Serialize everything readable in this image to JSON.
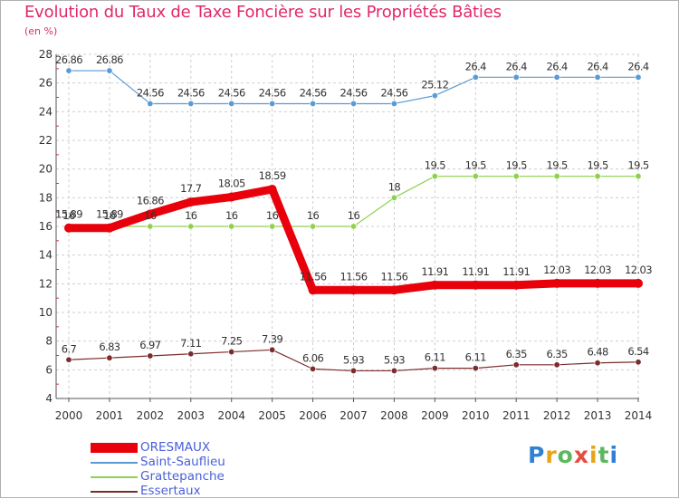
{
  "title": "Evolution du Taux de Taxe Foncière sur les Propriétés Bâties",
  "unit_label": "(en %)",
  "chart_data": {
    "type": "line",
    "title": "Evolution du Taux de Taxe Foncière sur les Propriétés Bâties",
    "ylabel": "(en %)",
    "xlabel": "",
    "ylim": [
      4,
      28
    ],
    "yticks": [
      4,
      6,
      8,
      10,
      12,
      14,
      16,
      18,
      20,
      22,
      24,
      26,
      28
    ],
    "x": [
      "2000",
      "2001",
      "2002",
      "2003",
      "2004",
      "2005",
      "2006",
      "2007",
      "2008",
      "2009",
      "2010",
      "2011",
      "2012",
      "2013",
      "2014"
    ],
    "series": [
      {
        "name": "Saint-Sauflieu",
        "color": "#5b9bd5",
        "values": [
          26.86,
          26.86,
          24.56,
          24.56,
          24.56,
          24.56,
          24.56,
          24.56,
          24.56,
          25.12,
          26.4,
          26.4,
          26.4,
          26.4,
          26.4
        ],
        "labels": [
          "26.86",
          "26.86",
          "24.56",
          "24.56",
          "24.56",
          "24.56",
          "24.56",
          "24.56",
          "24.56",
          "25.12",
          "26.4",
          "26.4",
          "26.4",
          "26.4",
          "26.4"
        ]
      },
      {
        "name": "Grattepanche",
        "color": "#8fd14f",
        "values": [
          16,
          16,
          16,
          16,
          16,
          16,
          16,
          16,
          18,
          19.5,
          19.5,
          19.5,
          19.5,
          19.5,
          19.5
        ],
        "labels": [
          "16",
          "16",
          "16",
          "16",
          "16",
          "16",
          "16",
          "16",
          "18",
          "19.5",
          "19.5",
          "19.5",
          "19.5",
          "19.5",
          "19.5"
        ]
      },
      {
        "name": "Essertaux",
        "color": "#7b2c2c",
        "values": [
          6.7,
          6.83,
          6.97,
          7.11,
          7.25,
          7.39,
          6.06,
          5.93,
          5.93,
          6.11,
          6.11,
          6.35,
          6.35,
          6.48,
          6.54
        ],
        "labels": [
          "6.7",
          "6.83",
          "6.97",
          "7.11",
          "7.25",
          "7.39",
          "6.06",
          "5.93",
          "5.93",
          "6.11",
          "6.11",
          "6.35",
          "6.35",
          "6.48",
          "6.54"
        ]
      },
      {
        "name": "ORESMAUX",
        "color": "#e8000b",
        "values": [
          15.89,
          15.89,
          16.86,
          17.7,
          18.05,
          18.59,
          11.56,
          11.56,
          11.56,
          11.91,
          11.91,
          11.91,
          12.03,
          12.03,
          12.03
        ],
        "labels": [
          "15.89",
          "15.89",
          "16.86",
          "17.7",
          "18.05",
          "18.59",
          "11.56",
          "11.56",
          "11.56",
          "11.91",
          "11.91",
          "11.91",
          "12.03",
          "12.03",
          "12.03"
        ]
      }
    ]
  },
  "legend": [
    {
      "name": "ORESMAUX",
      "color": "#e8000b"
    },
    {
      "name": "Saint-Sauflieu",
      "color": "#5b9bd5"
    },
    {
      "name": "Grattepanche",
      "color": "#8fd14f"
    },
    {
      "name": "Essertaux",
      "color": "#7b2c2c"
    }
  ],
  "logo": {
    "text": "Proxiti"
  }
}
